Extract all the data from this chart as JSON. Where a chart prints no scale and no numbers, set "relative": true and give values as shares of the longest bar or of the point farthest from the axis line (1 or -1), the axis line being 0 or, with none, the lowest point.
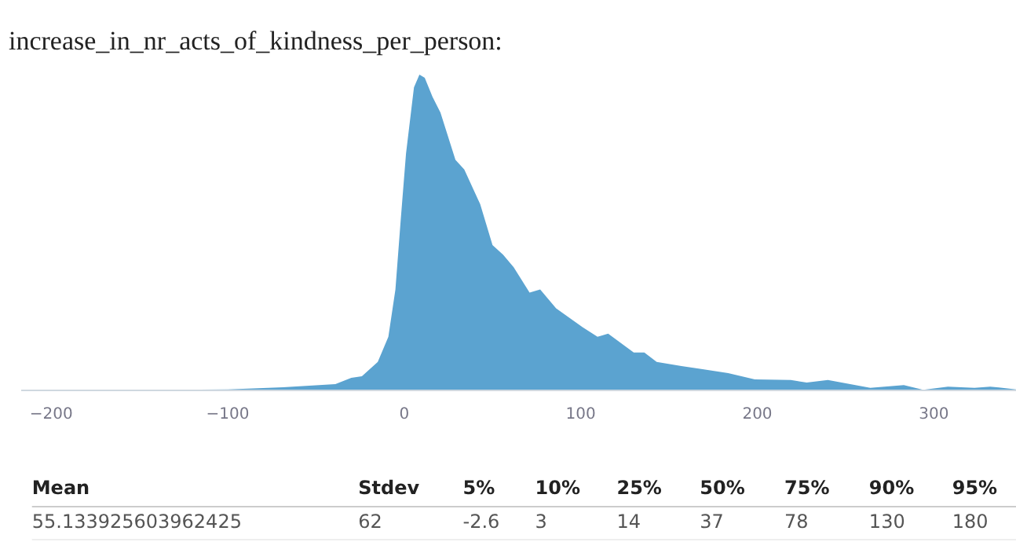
{
  "chart_data": {
    "type": "area",
    "title": "increase_in_nr_acts_of_kindness_per_person:",
    "relative": true,
    "color": "#5ba3d0",
    "x": [
      -217,
      -100,
      -68.6,
      -39,
      -30,
      -24,
      -15,
      -9,
      -5,
      -2,
      1,
      5.5,
      8.6,
      11.6,
      16,
      20.5,
      29,
      34,
      43,
      50,
      56,
      62,
      71,
      77,
      86,
      101,
      109.5,
      115.5,
      130,
      136,
      143,
      157,
      169,
      183.5,
      198.6,
      219,
      228,
      240,
      264,
      283,
      294,
      308,
      323,
      332,
      347
    ],
    "values": [
      0,
      0.003,
      0.01,
      0.02,
      0.04,
      0.045,
      0.09,
      0.17,
      0.32,
      0.54,
      0.75,
      0.96,
      1.0,
      0.99,
      0.93,
      0.88,
      0.73,
      0.7,
      0.59,
      0.46,
      0.43,
      0.39,
      0.31,
      0.32,
      0.26,
      0.2,
      0.17,
      0.18,
      0.12,
      0.12,
      0.09,
      0.077,
      0.067,
      0.055,
      0.035,
      0.033,
      0.025,
      0.033,
      0.008,
      0.017,
      0.002,
      0.012,
      0.008,
      0.012,
      0.003
    ],
    "xlim": [
      -217,
      347
    ],
    "xticks": [
      {
        "value": -200,
        "label": "−200"
      },
      {
        "value": -100,
        "label": "−100"
      },
      0,
      100,
      200,
      300
    ],
    "annotations": [
      "Mean",
      "Stdev",
      "5%",
      "10%",
      "25%",
      "50%",
      "75%",
      "90%",
      "95%",
      "55.133925603962425",
      "62",
      "-2.6",
      "3",
      "14",
      "37",
      "78",
      "130",
      "180"
    ]
  }
}
